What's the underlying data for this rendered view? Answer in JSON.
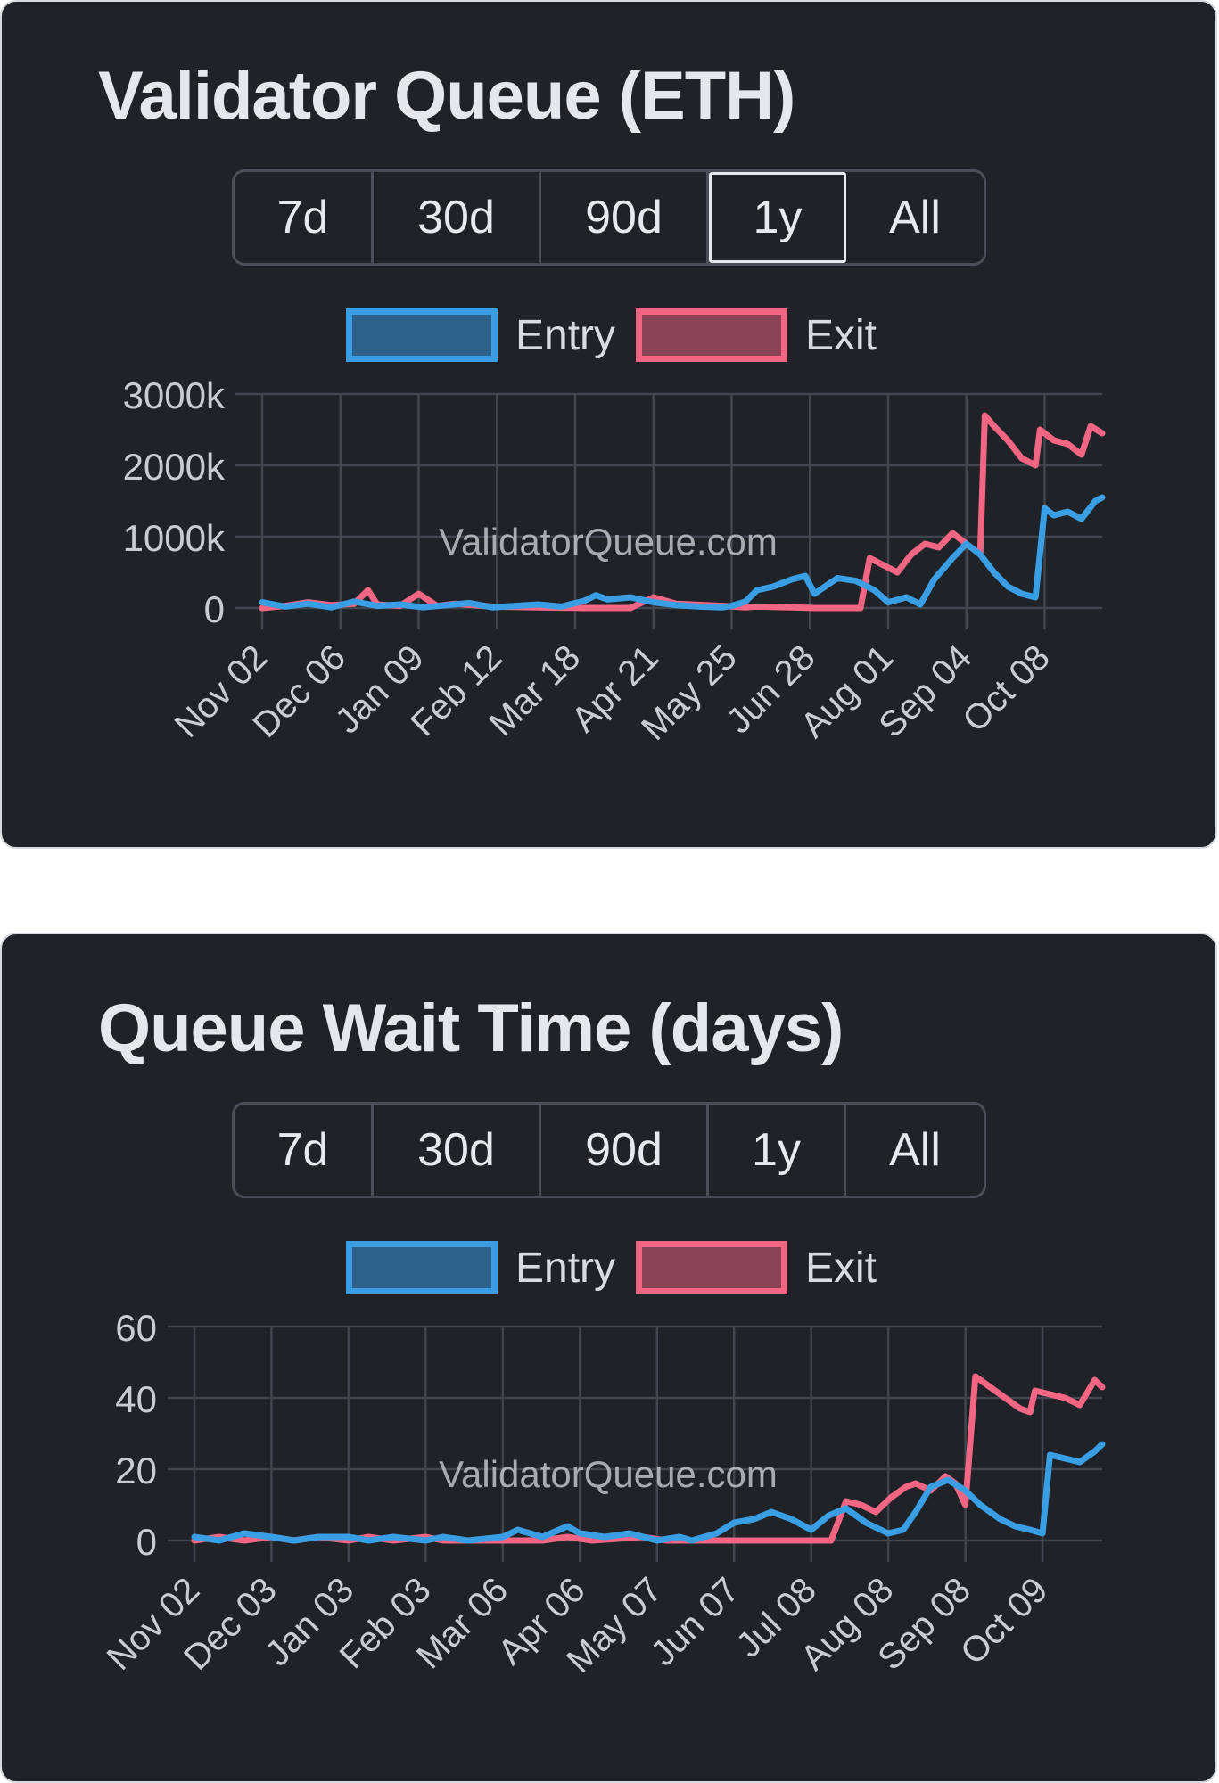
{
  "range_options": [
    "7d",
    "30d",
    "90d",
    "1y",
    "All"
  ],
  "colors": {
    "entry": "#3a9ee4",
    "exit": "#f26583",
    "entry_fill": "#2e6189",
    "exit_fill": "#8a4255",
    "grid": "#41454d"
  },
  "watermark": "ValidatorQueue.com",
  "charts": [
    {
      "title": "Validator Queue (ETH)",
      "selected_range": "1y",
      "legend": [
        "Entry",
        "Exit"
      ]
    },
    {
      "title": "Queue Wait Time (days)",
      "selected_range": "",
      "legend": [
        "Entry",
        "Exit"
      ]
    }
  ],
  "chart_data": [
    {
      "type": "line",
      "title": "Validator Queue (ETH)",
      "ylabel": "",
      "xlabel": "",
      "ylim": [
        0,
        3000000
      ],
      "y_ticks": [
        0,
        1000000,
        2000000,
        3000000
      ],
      "y_tick_labels": [
        "0",
        "1000k",
        "2000k",
        "3000k"
      ],
      "x_tick_labels": [
        "Nov 02",
        "Dec 06",
        "Jan 09",
        "Feb 12",
        "Mar 18",
        "Apr 21",
        "May 25",
        "Jun 28",
        "Aug 01",
        "Sep 04",
        "Oct 08"
      ],
      "x_tick_days": [
        0,
        34,
        68,
        102,
        136,
        170,
        204,
        238,
        272,
        306,
        340
      ],
      "x_range_days": [
        0,
        365
      ],
      "series": [
        {
          "name": "Entry",
          "x": [
            0,
            10,
            20,
            30,
            40,
            50,
            60,
            70,
            80,
            90,
            100,
            110,
            120,
            130,
            140,
            145,
            150,
            160,
            170,
            180,
            190,
            200,
            204,
            210,
            215,
            222,
            230,
            236,
            240,
            250,
            258,
            266,
            272,
            280,
            286,
            292,
            300,
            306,
            312,
            318,
            324,
            330,
            336,
            340,
            344,
            350,
            356,
            362,
            365
          ],
          "y": [
            80000,
            20000,
            60000,
            10000,
            90000,
            30000,
            50000,
            10000,
            40000,
            70000,
            10000,
            30000,
            50000,
            20000,
            100000,
            180000,
            120000,
            150000,
            80000,
            40000,
            20000,
            10000,
            30000,
            90000,
            250000,
            300000,
            400000,
            450000,
            200000,
            420000,
            380000,
            250000,
            80000,
            150000,
            50000,
            400000,
            700000,
            900000,
            750000,
            500000,
            300000,
            200000,
            150000,
            1400000,
            1300000,
            1350000,
            1250000,
            1500000,
            1550000
          ]
        },
        {
          "name": "Exit",
          "x": [
            0,
            10,
            20,
            30,
            40,
            46,
            50,
            60,
            68,
            76,
            84,
            100,
            120,
            140,
            160,
            170,
            180,
            200,
            210,
            215,
            230,
            240,
            260,
            264,
            270,
            276,
            282,
            288,
            294,
            300,
            306,
            312,
            314,
            318,
            324,
            330,
            336,
            338,
            344,
            350,
            356,
            360,
            365
          ],
          "y": [
            0,
            30000,
            80000,
            40000,
            60000,
            250000,
            50000,
            30000,
            200000,
            30000,
            60000,
            20000,
            10000,
            0,
            0,
            150000,
            60000,
            30000,
            10000,
            20000,
            10000,
            0,
            0,
            700000,
            600000,
            500000,
            750000,
            900000,
            850000,
            1050000,
            900000,
            750000,
            2700000,
            2550000,
            2350000,
            2100000,
            2000000,
            2500000,
            2350000,
            2300000,
            2150000,
            2550000,
            2450000
          ]
        }
      ]
    },
    {
      "type": "line",
      "title": "Queue Wait Time (days)",
      "ylabel": "",
      "xlabel": "",
      "ylim": [
        0,
        60
      ],
      "y_ticks": [
        0,
        20,
        40,
        60
      ],
      "y_tick_labels": [
        "0",
        "20",
        "40",
        "60"
      ],
      "x_tick_labels": [
        "Nov 02",
        "Dec 03",
        "Jan 03",
        "Feb 03",
        "Mar 06",
        "Apr 06",
        "May 07",
        "Jun 07",
        "Jul 08",
        "Aug 08",
        "Sep 08",
        "Oct 09"
      ],
      "x_tick_days": [
        0,
        31,
        62,
        93,
        124,
        155,
        186,
        217,
        248,
        279,
        310,
        341
      ],
      "x_range_days": [
        0,
        365
      ],
      "series": [
        {
          "name": "Entry",
          "x": [
            0,
            10,
            20,
            31,
            40,
            50,
            62,
            70,
            80,
            93,
            100,
            110,
            124,
            130,
            140,
            150,
            155,
            165,
            175,
            186,
            195,
            200,
            210,
            217,
            225,
            232,
            240,
            248,
            255,
            262,
            270,
            279,
            285,
            290,
            296,
            303,
            310,
            316,
            324,
            330,
            336,
            341,
            344,
            350,
            356,
            362,
            365
          ],
          "y": [
            1,
            0,
            2,
            1,
            0,
            1,
            1,
            0,
            1,
            0,
            1,
            0,
            1,
            3,
            1,
            4,
            2,
            1,
            2,
            0,
            1,
            0,
            2,
            5,
            6,
            8,
            6,
            3,
            7,
            9,
            5,
            2,
            3,
            8,
            15,
            17,
            14,
            10,
            6,
            4,
            3,
            2,
            24,
            23,
            22,
            25,
            27
          ]
        },
        {
          "name": "Exit",
          "x": [
            0,
            10,
            20,
            31,
            40,
            50,
            62,
            70,
            80,
            93,
            100,
            124,
            140,
            150,
            160,
            180,
            190,
            200,
            210,
            220,
            230,
            240,
            248,
            256,
            262,
            268,
            274,
            280,
            286,
            290,
            296,
            302,
            306,
            310,
            314,
            320,
            326,
            332,
            336,
            338,
            344,
            350,
            356,
            362,
            365
          ],
          "y": [
            0,
            1,
            0,
            1,
            0,
            1,
            0,
            1,
            0,
            1,
            0,
            0,
            0,
            1,
            0,
            1,
            0,
            0,
            0,
            0,
            0,
            0,
            0,
            0,
            11,
            10,
            8,
            12,
            15,
            16,
            14,
            18,
            16,
            10,
            46,
            43,
            40,
            37,
            36,
            42,
            41,
            40,
            38,
            45,
            43
          ]
        }
      ]
    }
  ]
}
